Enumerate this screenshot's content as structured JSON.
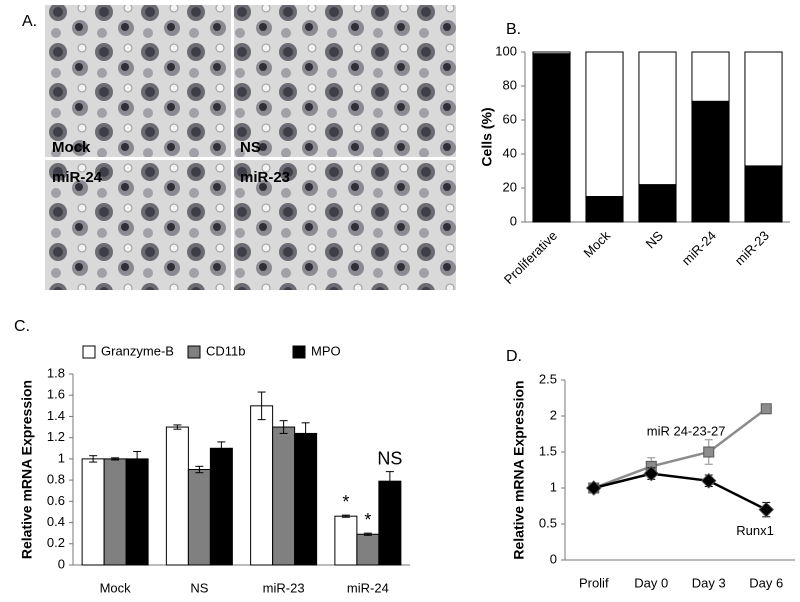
{
  "panel_labels": [
    "A.",
    "B.",
    "C.",
    "D."
  ],
  "micrographs": {
    "labels": [
      "Mock",
      "NS",
      "miR-24",
      "miR-23"
    ]
  },
  "chart_data": [
    {
      "type": "bar",
      "stacked": true,
      "ylabel": "Cells (%)",
      "categories": [
        "Proliferative",
        "Mock",
        "NS",
        "miR-24",
        "miR-23"
      ],
      "series": [
        {
          "color": "#000000",
          "values": [
            99,
            15,
            22,
            71,
            33
          ]
        },
        {
          "color": "#ffffff",
          "values": [
            1,
            85,
            78,
            29,
            67
          ]
        }
      ],
      "ylim": [
        0,
        100
      ],
      "yticks": [
        0,
        20,
        40,
        60,
        80,
        100
      ]
    },
    {
      "type": "bar",
      "stacked": false,
      "ylabel": "Relative mRNA Expression",
      "categories": [
        "Mock",
        "NS",
        "miR-23",
        "miR-24"
      ],
      "series": [
        {
          "name": "Granzyme-B",
          "color": "#ffffff",
          "values": [
            1.0,
            1.3,
            1.5,
            0.46
          ],
          "errors": [
            0.03,
            0.02,
            0.13,
            0.01
          ]
        },
        {
          "name": "CD11b",
          "color": "#808080",
          "values": [
            1.0,
            0.9,
            1.3,
            0.29
          ],
          "errors": [
            0.01,
            0.03,
            0.06,
            0.01
          ]
        },
        {
          "name": "MPO",
          "color": "#000000",
          "values": [
            1.0,
            1.1,
            1.24,
            0.79
          ],
          "errors": [
            0.07,
            0.06,
            0.1,
            0.09
          ]
        }
      ],
      "annotations": [
        {
          "text": "*",
          "series": 0,
          "category": 3
        },
        {
          "text": "*",
          "series": 1,
          "category": 3
        },
        {
          "text": "NS",
          "series": 2,
          "category": 3
        }
      ],
      "ylim": [
        0,
        1.8
      ],
      "yticks": [
        0,
        0.2,
        0.4,
        0.6,
        0.8,
        1,
        1.2,
        1.4,
        1.6,
        1.8
      ]
    },
    {
      "type": "line",
      "ylabel": "Relative mRNA Expression",
      "categories": [
        "Prolif",
        "Day 0",
        "Day 3",
        "Day 6"
      ],
      "series": [
        {
          "name": "miR 24-23-27",
          "color": "#8c8c8c",
          "marker": "square",
          "values": [
            1,
            1.3,
            1.5,
            2.1
          ],
          "errors": [
            0.03,
            0.12,
            0.17,
            0.03
          ]
        },
        {
          "name": "Runx1",
          "color": "#000000",
          "marker": "diamond",
          "values": [
            1,
            1.2,
            1.1,
            0.7
          ],
          "errors": [
            0.03,
            0.08,
            0.08,
            0.1
          ]
        }
      ],
      "ylim": [
        0,
        2.5
      ],
      "yticks": [
        0,
        0.5,
        1,
        1.5,
        2,
        2.5
      ]
    }
  ]
}
